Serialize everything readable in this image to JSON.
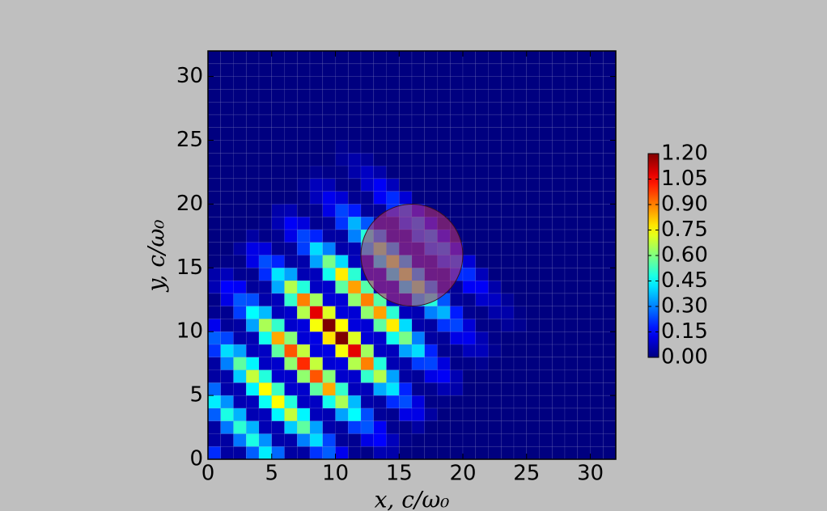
{
  "chart_data": {
    "type": "heatmap",
    "xlabel": "x,  c/ω₀",
    "ylabel": "y,  c/ω₀",
    "xlim": [
      0,
      32
    ],
    "ylim": [
      0,
      32
    ],
    "xticks": [
      0,
      5,
      10,
      15,
      20,
      25,
      30
    ],
    "yticks": [
      0,
      5,
      10,
      15,
      20,
      25,
      30
    ],
    "colormap": "jet",
    "clim": [
      0,
      1.2
    ],
    "cticks": [
      {
        "value": 0,
        "label": "0.00"
      },
      {
        "value": 0.15,
        "label": "0.15"
      },
      {
        "value": 0.3,
        "label": "0.30"
      },
      {
        "value": 0.45,
        "label": "0.45"
      },
      {
        "value": 0.6,
        "label": "0.60"
      },
      {
        "value": 0.75,
        "label": "0.75"
      },
      {
        "value": 0.9,
        "label": "0.90"
      },
      {
        "value": 1.05,
        "label": "1.05"
      },
      {
        "value": 1.2,
        "label": "1.20"
      }
    ],
    "circle": {
      "cx": 16,
      "cy": 16,
      "r": 4,
      "color": "#b5306e",
      "alpha": 0.6
    },
    "z": [
      [
        0.2,
        0.04,
        0.04,
        0.26,
        0.43,
        0.27,
        0.04,
        0.04,
        0.21,
        0.26,
        0.13,
        0.02,
        0.01,
        0.06,
        0.05,
        0,
        0,
        0,
        0,
        0,
        0,
        0,
        0,
        0,
        0,
        0,
        0,
        0,
        0,
        0,
        0,
        0
      ],
      [
        0.04,
        0.04,
        0.29,
        0.48,
        0.32,
        0.05,
        0.05,
        0.3,
        0.41,
        0.23,
        0.03,
        0.02,
        0.12,
        0.15,
        0.07,
        0.01,
        0,
        0,
        0,
        0,
        0,
        0,
        0,
        0,
        0,
        0,
        0,
        0,
        0,
        0,
        0,
        0
      ],
      [
        0.04,
        0.29,
        0.5,
        0.36,
        0.06,
        0.06,
        0.39,
        0.56,
        0.34,
        0.05,
        0.04,
        0.22,
        0.25,
        0.14,
        0.02,
        0.01,
        0.04,
        0,
        0,
        0,
        0,
        0,
        0,
        0,
        0,
        0,
        0,
        0,
        0,
        0,
        0,
        0
      ],
      [
        0.26,
        0.48,
        0.36,
        0.06,
        0.07,
        0.44,
        0.68,
        0.44,
        0.07,
        0.06,
        0.34,
        0.45,
        0.24,
        0.03,
        0.02,
        0.12,
        0.12,
        0.04,
        0,
        0,
        0,
        0,
        0,
        0,
        0,
        0,
        0,
        0,
        0,
        0,
        0,
        0
      ],
      [
        0.43,
        0.32,
        0.06,
        0.07,
        0.46,
        0.75,
        0.49,
        0.08,
        0.08,
        0.47,
        0.65,
        0.37,
        0.05,
        0.04,
        0.2,
        0.24,
        0.11,
        0.01,
        0.01,
        0,
        0,
        0,
        0,
        0,
        0,
        0,
        0,
        0,
        0,
        0,
        0,
        0
      ],
      [
        0.27,
        0.05,
        0.06,
        0.44,
        0.75,
        0.52,
        0.09,
        0.09,
        0.56,
        0.85,
        0.51,
        0.07,
        0.07,
        0.35,
        0.42,
        0.19,
        0.02,
        0.02,
        0.06,
        0.05,
        0,
        0,
        0,
        0,
        0,
        0,
        0,
        0,
        0,
        0,
        0,
        0
      ],
      [
        0.04,
        0.05,
        0.39,
        0.68,
        0.49,
        0.09,
        0.09,
        0.62,
        0.95,
        0.61,
        0.09,
        0.09,
        0.51,
        0.66,
        0.34,
        0.04,
        0.03,
        0.12,
        0.14,
        0.06,
        0,
        0,
        0,
        0,
        0,
        0,
        0,
        0,
        0,
        0,
        0,
        0
      ],
      [
        0.04,
        0.3,
        0.56,
        0.44,
        0.08,
        0.09,
        0.62,
        1,
        0.68,
        0.1,
        0.11,
        0.66,
        0.9,
        0.49,
        0.06,
        0.05,
        0.22,
        0.23,
        0.11,
        0.01,
        0.01,
        0.02,
        0,
        0,
        0,
        0,
        0,
        0,
        0,
        0,
        0,
        0
      ],
      [
        0.21,
        0.41,
        0.34,
        0.07,
        0.08,
        0.56,
        0.95,
        0.68,
        0.11,
        0.12,
        0.74,
        1.08,
        0.64,
        0.08,
        0.07,
        0.34,
        0.41,
        0.19,
        0.02,
        0.02,
        0.07,
        0.07,
        0.02,
        0,
        0,
        0,
        0,
        0,
        0,
        0,
        0,
        0
      ],
      [
        0.26,
        0.23,
        0.05,
        0.06,
        0.47,
        0.85,
        0.61,
        0.1,
        0.12,
        0.78,
        1.2,
        0.71,
        0.1,
        0.09,
        0.47,
        0.59,
        0.3,
        0.04,
        0.03,
        0.12,
        0.13,
        0.06,
        0.01,
        0,
        0,
        0,
        0,
        0,
        0,
        0,
        0,
        0
      ],
      [
        0.13,
        0.03,
        0.04,
        0.34,
        0.65,
        0.51,
        0.09,
        0.11,
        0.74,
        1.2,
        0.75,
        0.11,
        0.1,
        0.56,
        0.77,
        0.41,
        0.05,
        0.04,
        0.21,
        0.23,
        0.1,
        0.01,
        0.01,
        0.03,
        0.02,
        0,
        0,
        0,
        0,
        0,
        0,
        0
      ],
      [
        0.02,
        0.02,
        0.22,
        0.45,
        0.37,
        0.07,
        0.09,
        0.66,
        1.08,
        0.71,
        0.11,
        0.1,
        0.62,
        0.86,
        0.5,
        0.07,
        0.06,
        0.3,
        0.36,
        0.18,
        0.02,
        0.01,
        0.05,
        0.05,
        0.01,
        0,
        0,
        0,
        0,
        0,
        0,
        0
      ],
      [
        0.01,
        0.12,
        0.25,
        0.24,
        0.05,
        0.07,
        0.51,
        0.9,
        0.64,
        0.1,
        0.1,
        0.62,
        0.9,
        0.55,
        0.08,
        0.07,
        0.39,
        0.49,
        0.25,
        0.03,
        0.02,
        0.09,
        0.08,
        0.03,
        0,
        0,
        0,
        0,
        0,
        0,
        0,
        0
      ],
      [
        0.06,
        0.15,
        0.14,
        0.03,
        0.04,
        0.35,
        0.66,
        0.49,
        0.08,
        0.09,
        0.56,
        0.86,
        0.55,
        0.08,
        0.08,
        0.44,
        0.59,
        0.33,
        0.05,
        0.03,
        0.14,
        0.14,
        0.05,
        0,
        0,
        0,
        0,
        0,
        0,
        0,
        0,
        0
      ],
      [
        0.05,
        0.07,
        0.02,
        0.02,
        0.2,
        0.42,
        0.34,
        0.06,
        0.07,
        0.47,
        0.77,
        0.5,
        0.08,
        0.08,
        0.46,
        0.65,
        0.37,
        0.05,
        0.04,
        0.2,
        0.2,
        0.07,
        0,
        0,
        0,
        0,
        0,
        0,
        0,
        0,
        0,
        0
      ],
      [
        0,
        0.01,
        0.01,
        0.12,
        0.24,
        0.19,
        0.04,
        0.05,
        0.34,
        0.59,
        0.41,
        0.07,
        0.07,
        0.44,
        0.65,
        0.39,
        0.06,
        0.05,
        0.23,
        0.26,
        0.1,
        0,
        0,
        0,
        0,
        0,
        0,
        0,
        0,
        0,
        0,
        0
      ],
      [
        0,
        0,
        0.04,
        0.12,
        0.11,
        0.02,
        0.03,
        0.22,
        0.41,
        0.3,
        0.05,
        0.06,
        0.39,
        0.59,
        0.37,
        0.06,
        0.05,
        0.26,
        0.29,
        0.12,
        0,
        0,
        0,
        0,
        0,
        0,
        0,
        0,
        0,
        0,
        0,
        0
      ],
      [
        0,
        0,
        0,
        0.04,
        0.01,
        0.02,
        0.12,
        0.23,
        0.19,
        0.04,
        0.04,
        0.3,
        0.49,
        0.33,
        0.05,
        0.05,
        0.26,
        0.3,
        0.13,
        0,
        0,
        0,
        0,
        0,
        0,
        0,
        0,
        0,
        0,
        0,
        0,
        0
      ],
      [
        0,
        0,
        0,
        0,
        0.01,
        0.06,
        0.14,
        0.11,
        0.02,
        0.03,
        0.21,
        0.36,
        0.25,
        0.05,
        0.04,
        0.23,
        0.29,
        0.13,
        0,
        0,
        0,
        0,
        0,
        0,
        0,
        0,
        0,
        0,
        0,
        0,
        0,
        0
      ],
      [
        0,
        0,
        0,
        0,
        0,
        0.05,
        0.06,
        0.01,
        0.02,
        0.12,
        0.23,
        0.18,
        0.03,
        0.03,
        0.2,
        0.26,
        0.12,
        0,
        0,
        0,
        0,
        0,
        0,
        0,
        0,
        0,
        0,
        0,
        0,
        0,
        0,
        0
      ],
      [
        0,
        0,
        0,
        0,
        0,
        0,
        0,
        0.01,
        0.07,
        0.13,
        0.1,
        0.02,
        0.02,
        0.14,
        0.2,
        0.1,
        0,
        0,
        0,
        0,
        0,
        0,
        0,
        0,
        0,
        0,
        0,
        0,
        0,
        0,
        0,
        0
      ],
      [
        0,
        0,
        0,
        0,
        0,
        0,
        0,
        0.02,
        0.07,
        0.06,
        0.01,
        0.01,
        0.09,
        0.14,
        0.07,
        0,
        0,
        0,
        0,
        0,
        0,
        0,
        0,
        0,
        0,
        0,
        0,
        0,
        0,
        0,
        0,
        0
      ],
      [
        0,
        0,
        0,
        0,
        0,
        0,
        0,
        0,
        0.02,
        0.01,
        0.01,
        0.05,
        0.08,
        0.05,
        0,
        0,
        0,
        0,
        0,
        0,
        0,
        0,
        0,
        0,
        0,
        0,
        0,
        0,
        0,
        0,
        0,
        0
      ],
      [
        0,
        0,
        0,
        0,
        0,
        0,
        0,
        0,
        0,
        0,
        0.03,
        0.05,
        0.03,
        0,
        0,
        0,
        0,
        0,
        0,
        0,
        0,
        0,
        0,
        0,
        0,
        0,
        0,
        0,
        0,
        0,
        0,
        0
      ],
      [
        0,
        0,
        0,
        0,
        0,
        0,
        0,
        0,
        0,
        0,
        0.02,
        0.01,
        0,
        0,
        0,
        0,
        0,
        0,
        0,
        0,
        0,
        0,
        0,
        0,
        0,
        0,
        0,
        0,
        0,
        0,
        0,
        0
      ],
      [
        0,
        0,
        0,
        0,
        0,
        0,
        0,
        0,
        0,
        0,
        0,
        0,
        0,
        0,
        0,
        0,
        0,
        0,
        0,
        0,
        0,
        0,
        0,
        0,
        0,
        0,
        0,
        0,
        0,
        0,
        0,
        0
      ],
      [
        0,
        0,
        0,
        0,
        0,
        0,
        0,
        0,
        0,
        0,
        0,
        0,
        0,
        0,
        0,
        0,
        0,
        0,
        0,
        0,
        0,
        0,
        0,
        0,
        0,
        0,
        0,
        0,
        0,
        0,
        0,
        0
      ],
      [
        0,
        0,
        0,
        0,
        0,
        0,
        0,
        0,
        0,
        0,
        0,
        0,
        0,
        0,
        0,
        0,
        0,
        0,
        0,
        0,
        0,
        0,
        0,
        0,
        0,
        0,
        0,
        0,
        0,
        0,
        0,
        0
      ],
      [
        0,
        0,
        0,
        0,
        0,
        0,
        0,
        0,
        0,
        0,
        0,
        0,
        0,
        0,
        0,
        0,
        0,
        0,
        0,
        0,
        0,
        0,
        0,
        0,
        0,
        0,
        0,
        0,
        0,
        0,
        0,
        0
      ],
      [
        0,
        0,
        0,
        0,
        0,
        0,
        0,
        0,
        0,
        0,
        0,
        0,
        0,
        0,
        0,
        0,
        0,
        0,
        0,
        0,
        0,
        0,
        0,
        0,
        0,
        0,
        0,
        0,
        0,
        0,
        0,
        0
      ],
      [
        0,
        0,
        0,
        0,
        0,
        0,
        0,
        0,
        0,
        0,
        0,
        0,
        0,
        0,
        0,
        0,
        0,
        0,
        0,
        0,
        0,
        0,
        0,
        0,
        0,
        0,
        0,
        0,
        0,
        0,
        0,
        0
      ],
      [
        0,
        0,
        0,
        0,
        0,
        0,
        0,
        0,
        0,
        0,
        0,
        0,
        0,
        0,
        0,
        0,
        0,
        0,
        0,
        0,
        0,
        0,
        0,
        0,
        0,
        0,
        0,
        0,
        0,
        0,
        0,
        0
      ]
    ]
  }
}
